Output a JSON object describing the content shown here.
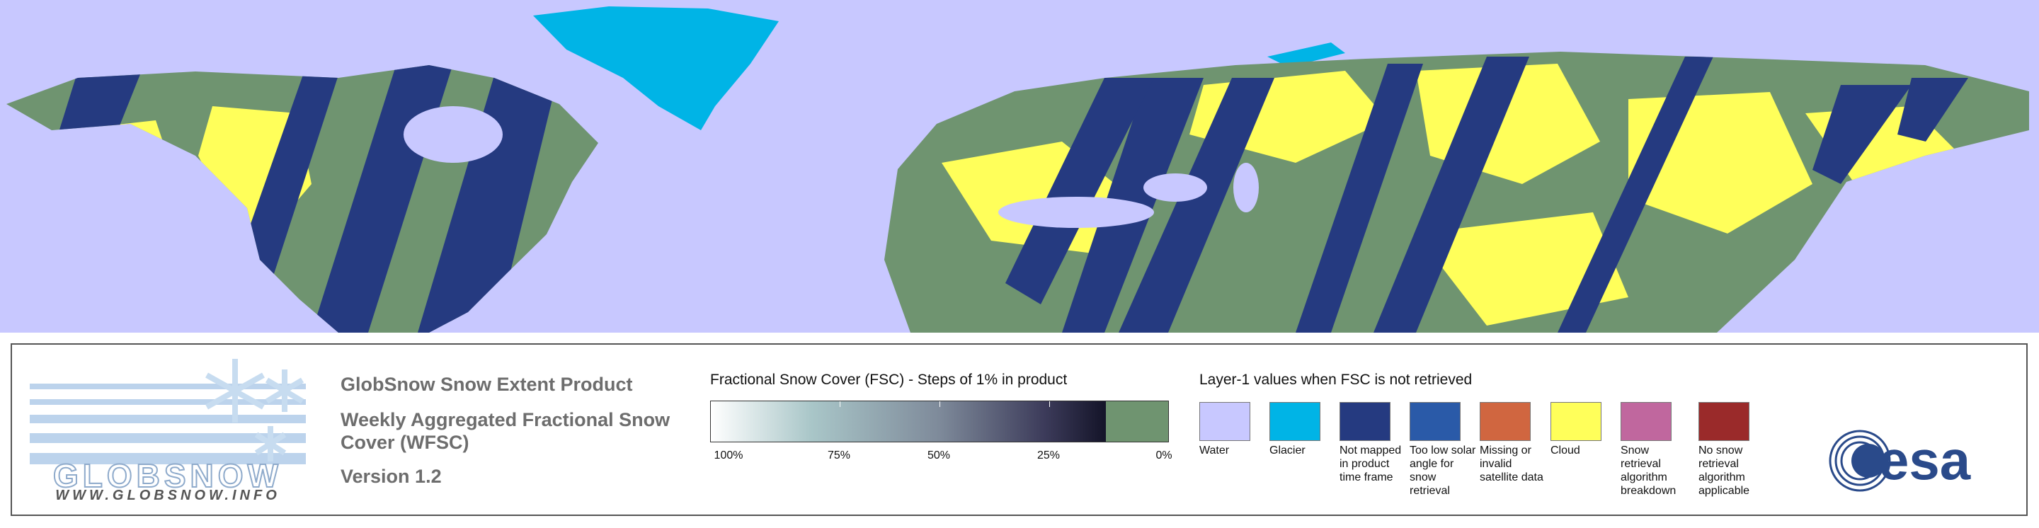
{
  "logo": {
    "name": "GLOBSNOW",
    "url": "WWW.GLOBSNOW.INFO"
  },
  "product": {
    "title": "GlobSnow Snow Extent Product",
    "subtitle": "Weekly Aggregated Fractional Snow Cover (WFSC)",
    "version": "Version 1.2"
  },
  "fsc_scale": {
    "title": "Fractional Snow Cover (FSC) - Steps of 1% in product",
    "ticks": [
      "100%",
      "75%",
      "50%",
      "25%",
      "0%"
    ],
    "snow_free_color": "#6f9470"
  },
  "layer1": {
    "title": "Layer-1 values when FSC is not retrieved",
    "items": [
      {
        "label": "Water",
        "color": "#c8c8ff"
      },
      {
        "label": "Glacier",
        "color": "#00b4e6"
      },
      {
        "label": "Not mapped in product time frame",
        "color": "#253a80"
      },
      {
        "label": "Too low solar angle for snow retrieval",
        "color": "#2a5aa8"
      },
      {
        "label": "Missing or invalid satellite data",
        "color": "#d06640"
      },
      {
        "label": "Cloud",
        "color": "#ffff5a"
      },
      {
        "label": "Snow retrieval algorithm breakdown",
        "color": "#c0679e"
      },
      {
        "label": "No snow retrieval algorithm applicable",
        "color": "#9a2a2a"
      }
    ]
  },
  "partner": "esa"
}
